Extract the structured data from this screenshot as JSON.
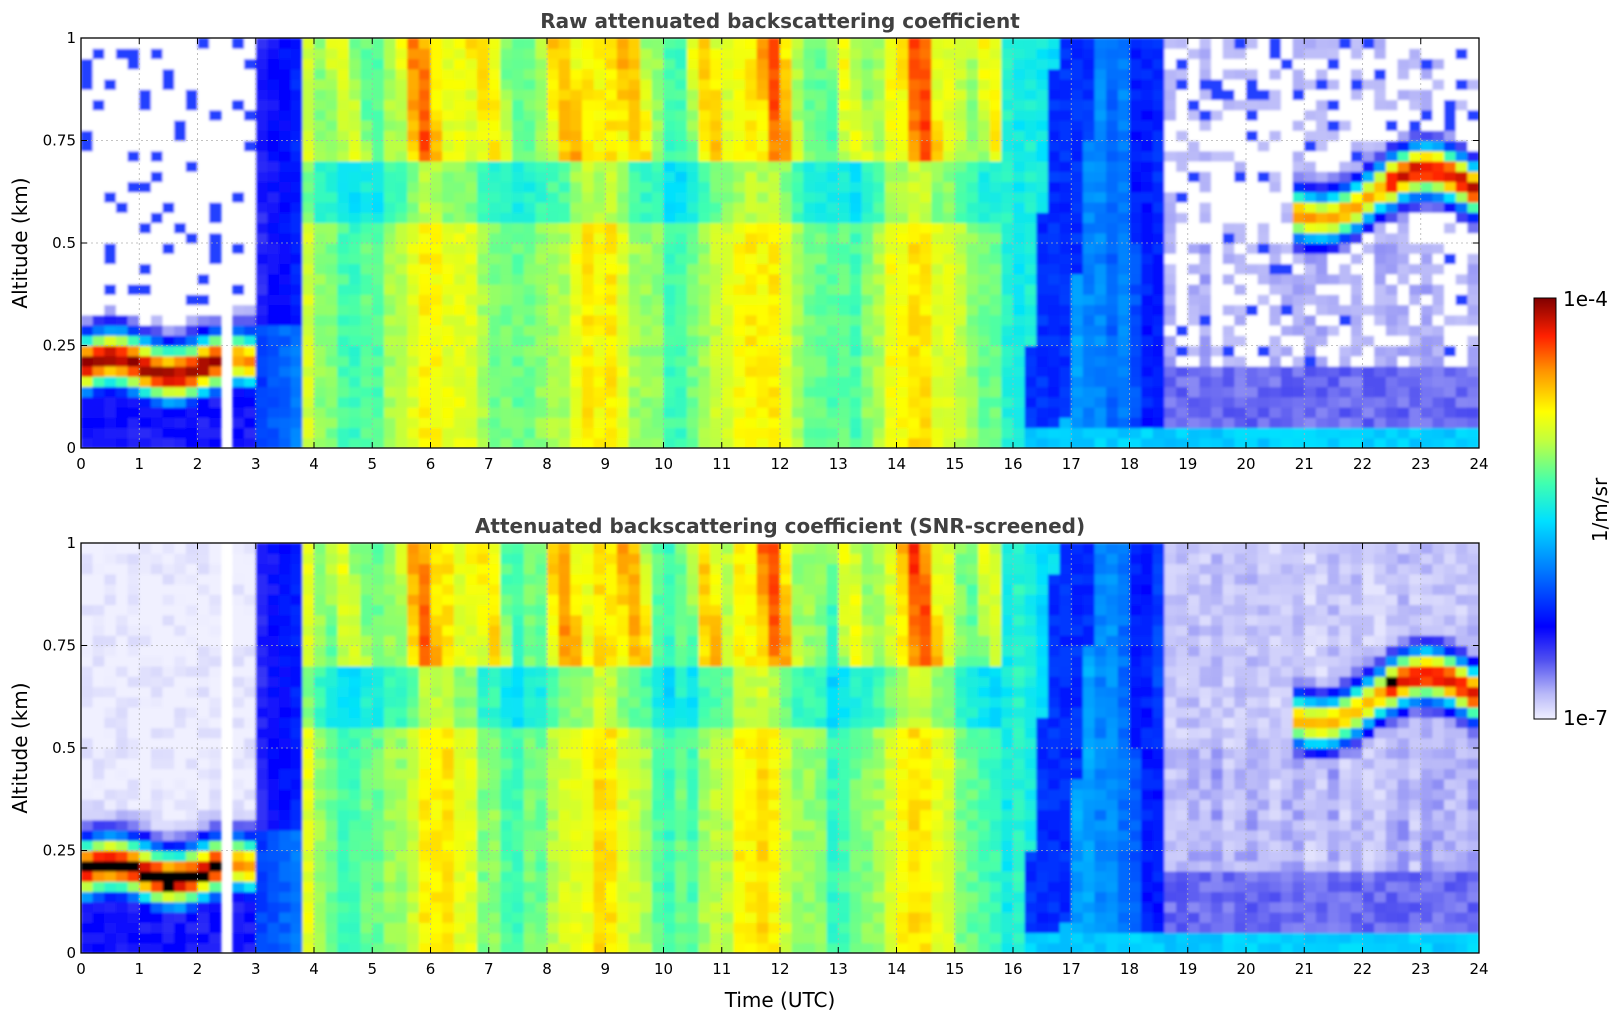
{
  "chart_data": [
    {
      "type": "heatmap",
      "title": "Raw attenuated backscattering coefficient",
      "xlabel": "",
      "ylabel": "Altitude (km)",
      "xlim": [
        0,
        24
      ],
      "ylim": [
        0,
        1
      ],
      "xticks": [
        "0",
        "1",
        "2",
        "3",
        "4",
        "5",
        "6",
        "7",
        "8",
        "9",
        "10",
        "11",
        "12",
        "13",
        "14",
        "15",
        "16",
        "17",
        "18",
        "19",
        "20",
        "21",
        "22",
        "23",
        "24"
      ],
      "yticks": [
        "0",
        "0.25",
        "0.5",
        "0.75",
        "1"
      ],
      "grid": true,
      "screened": false
    },
    {
      "type": "heatmap",
      "title": "Attenuated backscattering coefficient (SNR-screened)",
      "xlabel": "Time (UTC)",
      "ylabel": "Altitude (km)",
      "xlim": [
        0,
        24
      ],
      "ylim": [
        0,
        1
      ],
      "xticks": [
        "0",
        "1",
        "2",
        "3",
        "4",
        "5",
        "6",
        "7",
        "8",
        "9",
        "10",
        "11",
        "12",
        "13",
        "14",
        "15",
        "16",
        "17",
        "18",
        "19",
        "20",
        "21",
        "22",
        "23",
        "24"
      ],
      "yticks": [
        "0",
        "0.25",
        "0.5",
        "0.75",
        "1"
      ],
      "grid": true,
      "screened": true
    }
  ],
  "colorbar": {
    "max_label": "1e-4",
    "min_label": "1e-7",
    "unit_label": "1/m/sr",
    "scale": "log",
    "colormap": "jet"
  }
}
